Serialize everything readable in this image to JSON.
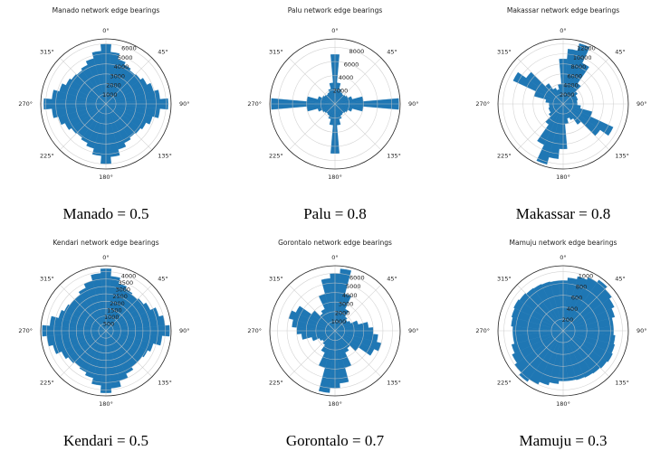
{
  "chart_data": [
    {
      "type": "polar-bar",
      "title": "Manado  network edge bearings",
      "caption": "Manado = 0.5",
      "color": "#1f77b4",
      "grid": true,
      "ylim": [
        0,
        6500
      ],
      "yticks": [
        1000,
        2000,
        3000,
        4000,
        5000,
        6000
      ],
      "xticks": [
        {
          "value": 0,
          "label": "0°"
        },
        {
          "value": 45,
          "label": "45°"
        },
        {
          "value": 90,
          "label": "90°"
        },
        {
          "value": 135,
          "label": "135°"
        },
        {
          "value": 180,
          "label": "180°"
        },
        {
          "value": 225,
          "label": "225°"
        },
        {
          "value": 270,
          "label": "270°"
        },
        {
          "value": 315,
          "label": "315°"
        }
      ],
      "values": [
        6000,
        5200,
        4600,
        4300,
        4100,
        4200,
        4500,
        4900,
        5400,
        6200,
        5400,
        4800,
        4400,
        4200,
        4100,
        4300,
        4700,
        5300,
        6000,
        5200,
        4600,
        4300,
        4100,
        4200,
        4500,
        4900,
        5400,
        6200,
        5400,
        4800,
        4400,
        4200,
        4100,
        4300,
        4700,
        5300
      ]
    },
    {
      "type": "polar-bar",
      "title": "Palu  network edge bearings",
      "caption": "Palu = 0.8",
      "color": "#1f77b4",
      "grid": true,
      "ylim": [
        0,
        9200
      ],
      "yticks": [
        2000,
        4000,
        6000,
        8000
      ],
      "xticks": [
        {
          "value": 0,
          "label": "0°"
        },
        {
          "value": 45,
          "label": "45°"
        },
        {
          "value": 90,
          "label": "90°"
        },
        {
          "value": 135,
          "label": "135°"
        },
        {
          "value": 180,
          "label": "180°"
        },
        {
          "value": 225,
          "label": "225°"
        },
        {
          "value": 270,
          "label": "270°"
        },
        {
          "value": 315,
          "label": "315°"
        }
      ],
      "values": [
        7000,
        3000,
        2200,
        1800,
        1700,
        1800,
        2000,
        2500,
        4000,
        9000,
        4000,
        2500,
        2000,
        1800,
        1700,
        1800,
        2200,
        3000,
        7000,
        3000,
        2200,
        1800,
        1700,
        1800,
        2000,
        2500,
        4000,
        9000,
        4000,
        2500,
        2000,
        1800,
        1700,
        1800,
        2200,
        3000
      ]
    },
    {
      "type": "polar-bar",
      "title": "Makassar network edge bearings",
      "caption": "Makassar = 0.8",
      "color": "#1f77b4",
      "grid": true,
      "ylim": [
        0,
        13000
      ],
      "yticks": [
        2000,
        4000,
        6000,
        8000,
        10000,
        12000
      ],
      "xticks": [
        {
          "value": 0,
          "label": "0°"
        },
        {
          "value": 45,
          "label": "45°"
        },
        {
          "value": 90,
          "label": "90°"
        },
        {
          "value": 135,
          "label": "135°"
        },
        {
          "value": 180,
          "label": "180°"
        },
        {
          "value": 225,
          "label": "225°"
        },
        {
          "value": 270,
          "label": "270°"
        },
        {
          "value": 315,
          "label": "315°"
        }
      ],
      "values": [
        9000,
        11000,
        12500,
        9000,
        5000,
        3500,
        3000,
        3000,
        2800,
        2800,
        3500,
        6000,
        11000,
        9000,
        5000,
        3500,
        3000,
        4000,
        9000,
        11000,
        12500,
        9000,
        5000,
        3500,
        3000,
        3000,
        2800,
        2800,
        3500,
        6000,
        11000,
        9000,
        5000,
        3500,
        3000,
        4000
      ]
    },
    {
      "type": "polar-bar",
      "title": "Kendari  network edge bearings",
      "caption": "Kendari = 0.5",
      "color": "#1f77b4",
      "grid": true,
      "ylim": [
        0,
        4400
      ],
      "yticks": [
        500,
        1000,
        1500,
        2000,
        2500,
        3000,
        3500,
        4000
      ],
      "xticks": [
        {
          "value": 0,
          "label": "0°"
        },
        {
          "value": 45,
          "label": "45°"
        },
        {
          "value": 90,
          "label": "90°"
        },
        {
          "value": 135,
          "label": "135°"
        },
        {
          "value": 180,
          "label": "180°"
        },
        {
          "value": 225,
          "label": "225°"
        },
        {
          "value": 270,
          "label": "270°"
        },
        {
          "value": 315,
          "label": "315°"
        }
      ],
      "values": [
        4200,
        3700,
        3300,
        3100,
        3000,
        3100,
        3300,
        3700,
        4000,
        4300,
        3800,
        3300,
        3100,
        3000,
        3000,
        3200,
        3500,
        3900,
        4200,
        3700,
        3300,
        3100,
        3000,
        3100,
        3300,
        3700,
        4000,
        4300,
        3800,
        3300,
        3100,
        3000,
        3000,
        3200,
        3500,
        3900
      ]
    },
    {
      "type": "polar-bar",
      "title": "Gorontalo  network edge bearings",
      "caption": "Gorontalo = 0.7",
      "color": "#1f77b4",
      "grid": true,
      "ylim": [
        0,
        6800
      ],
      "yticks": [
        1000,
        2000,
        3000,
        4000,
        5000,
        6000
      ],
      "xticks": [
        {
          "value": 0,
          "label": "0°"
        },
        {
          "value": 45,
          "label": "45°"
        },
        {
          "value": 90,
          "label": "90°"
        },
        {
          "value": 135,
          "label": "135°"
        },
        {
          "value": 180,
          "label": "180°"
        },
        {
          "value": 225,
          "label": "225°"
        },
        {
          "value": 270,
          "label": "270°"
        },
        {
          "value": 315,
          "label": "315°"
        }
      ],
      "values": [
        6000,
        6500,
        4000,
        2500,
        1800,
        1600,
        1800,
        2500,
        3500,
        4000,
        4500,
        5000,
        4500,
        3000,
        2200,
        2500,
        4000,
        5500,
        6000,
        6500,
        4000,
        2500,
        1800,
        1600,
        1800,
        2500,
        3500,
        4000,
        4500,
        5000,
        4500,
        3000,
        2200,
        2500,
        4000,
        5500
      ]
    },
    {
      "type": "polar-bar",
      "title": "Mamuju  network edge bearings",
      "caption": "Mamuju = 0.3",
      "color": "#1f77b4",
      "grid": true,
      "ylim": [
        0,
        1100
      ],
      "yticks": [
        200,
        400,
        600,
        800,
        1000
      ],
      "xticks": [
        {
          "value": 0,
          "label": "0°"
        },
        {
          "value": 45,
          "label": "45°"
        },
        {
          "value": 90,
          "label": "90°"
        },
        {
          "value": 135,
          "label": "135°"
        },
        {
          "value": 180,
          "label": "180°"
        },
        {
          "value": 225,
          "label": "225°"
        },
        {
          "value": 270,
          "label": "270°"
        },
        {
          "value": 315,
          "label": "315°"
        }
      ],
      "values": [
        850,
        900,
        950,
        1000,
        1050,
        1000,
        950,
        900,
        850,
        850,
        880,
        900,
        920,
        900,
        880,
        870,
        860,
        850,
        850,
        900,
        950,
        1000,
        1050,
        1000,
        950,
        900,
        850,
        850,
        880,
        900,
        920,
        900,
        880,
        870,
        860,
        850
      ]
    }
  ]
}
